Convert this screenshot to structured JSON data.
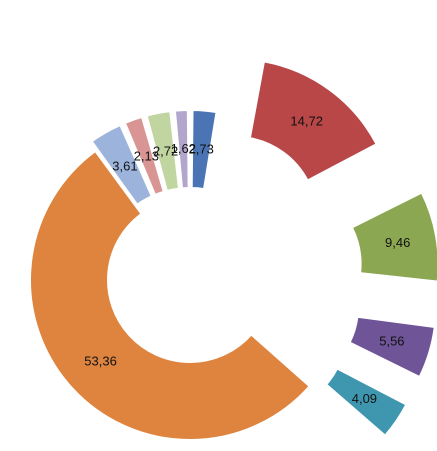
{
  "chart_data": {
    "type": "pie",
    "variant": "exploded-doughnut",
    "title": "",
    "legend": "none",
    "slices": [
      {
        "label": "2,73",
        "value": 2.73,
        "color": "#4a74b4"
      },
      {
        "label": "14,72",
        "value": 14.72,
        "color": "#b94748"
      },
      {
        "label": "9,46",
        "value": 9.46,
        "color": "#8ba752"
      },
      {
        "label": "5,56",
        "value": 5.56,
        "color": "#6f5597"
      },
      {
        "label": "4,09",
        "value": 4.09,
        "color": "#3f97af"
      },
      {
        "label": "53,36",
        "value": 53.36,
        "color": "#de843f"
      },
      {
        "label": "3,61",
        "value": 3.61,
        "color": "#9cb4dc"
      },
      {
        "label": "2,13",
        "value": 2.13,
        "color": "#d99594"
      },
      {
        "label": "2,72",
        "value": 2.72,
        "color": "#c1d5a0"
      },
      {
        "label": "1,62",
        "value": 1.62,
        "color": "#b3a6cc"
      }
    ]
  }
}
